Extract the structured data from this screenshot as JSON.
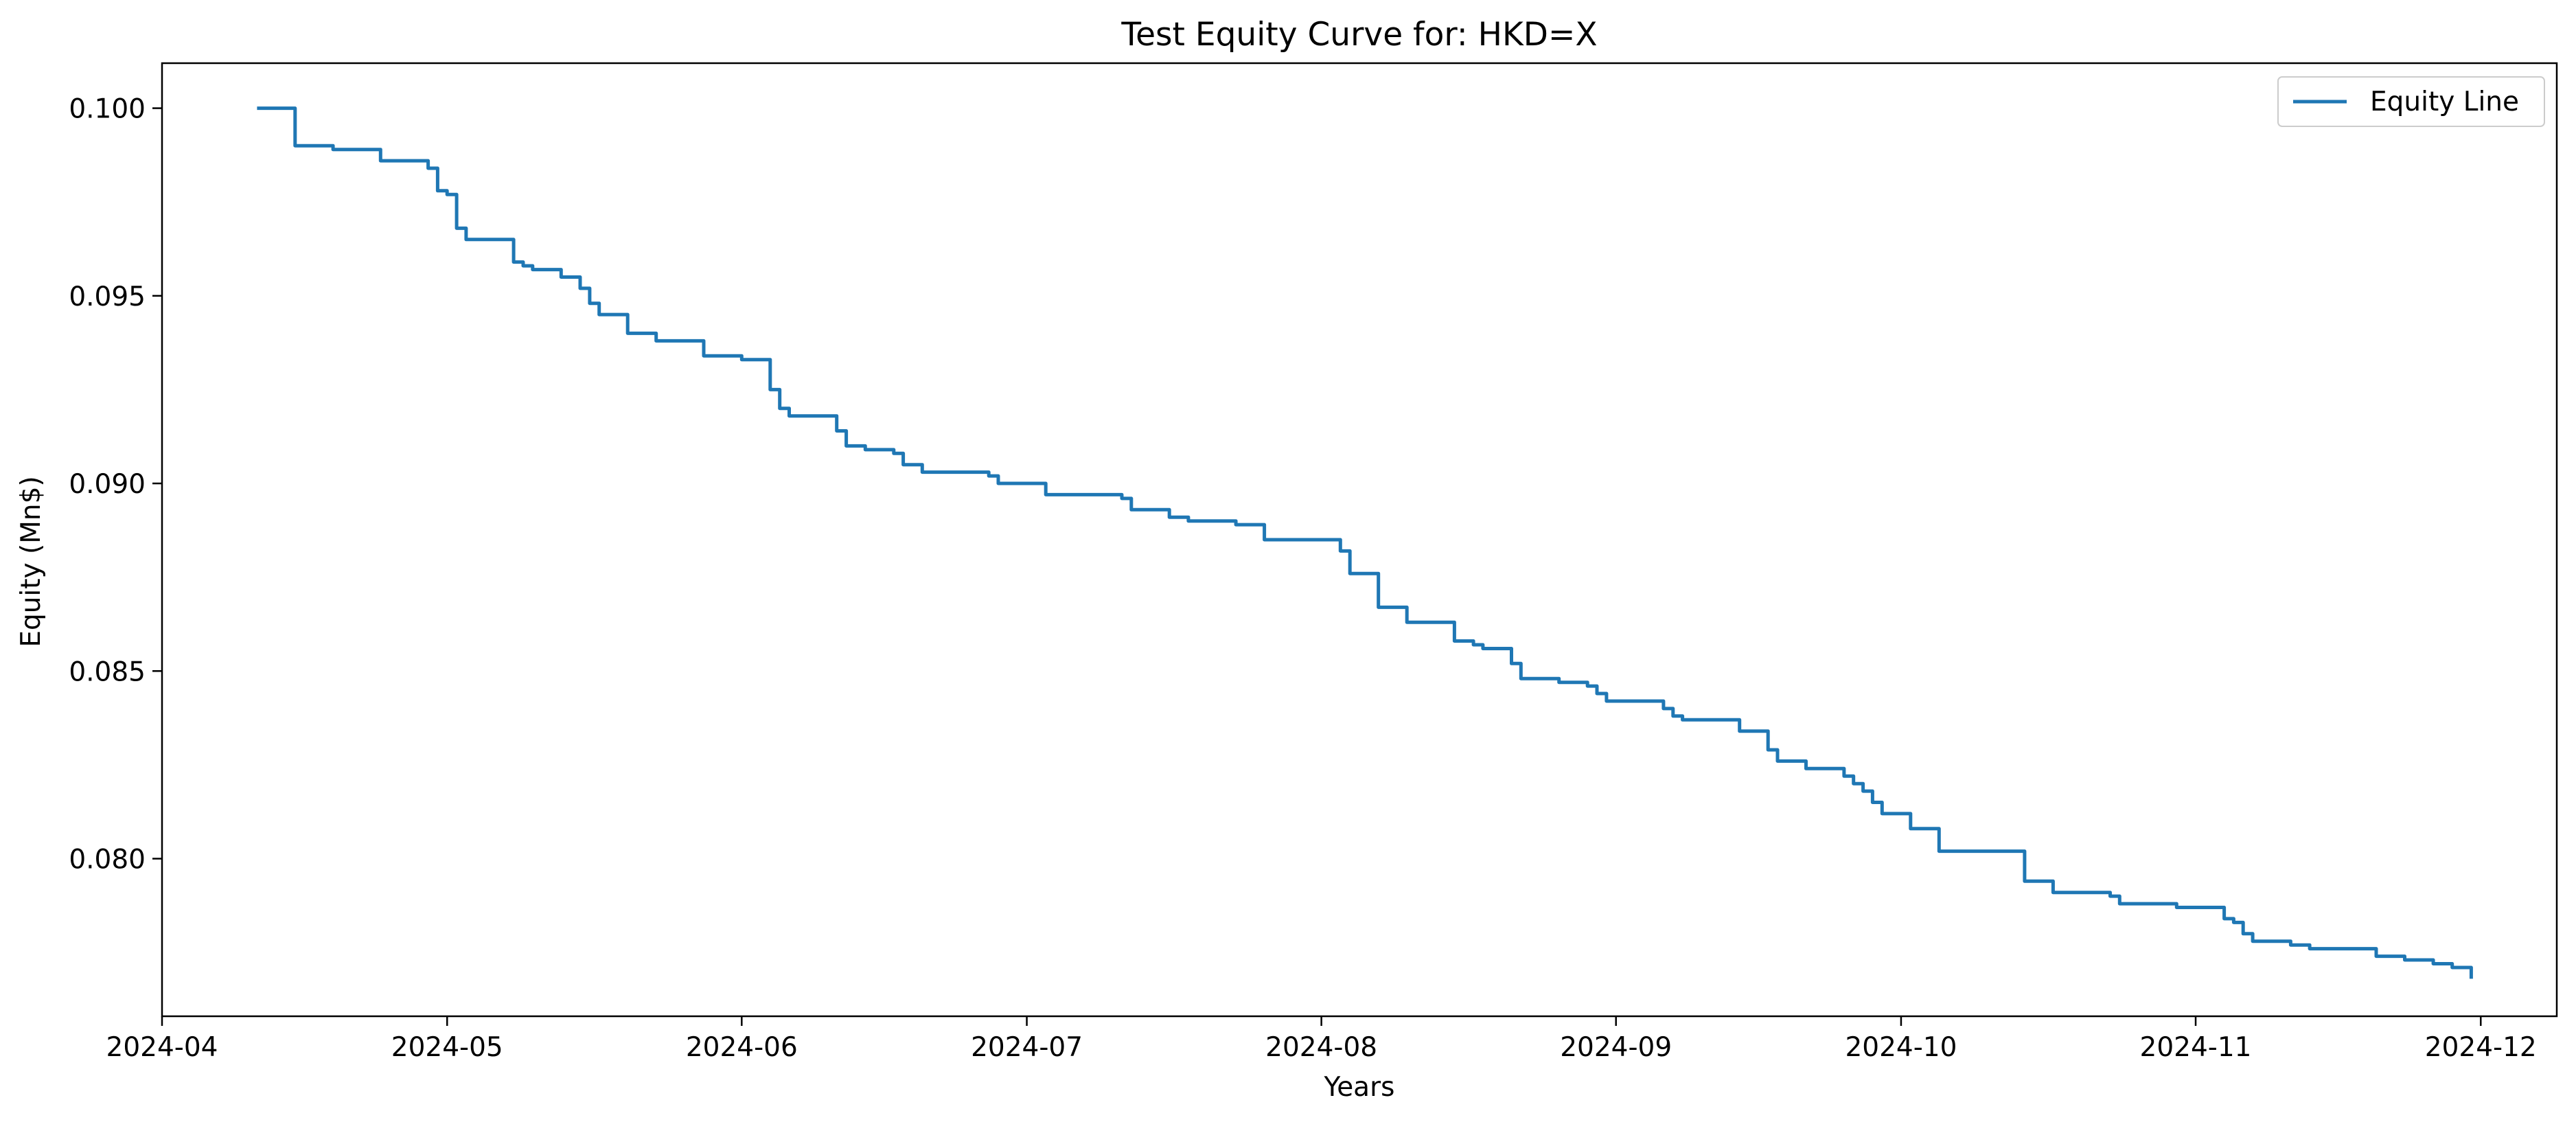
{
  "chart_data": {
    "type": "line",
    "title": "Test Equity Curve for: HKD=X",
    "xlabel": "Years",
    "ylabel": "Equity (Mn$)",
    "xlim": [
      "2024-04-01",
      "2024-12-09"
    ],
    "ylim": [
      0.0758,
      0.1012
    ],
    "x_tick_labels": [
      "2024-04",
      "2024-05",
      "2024-06",
      "2024-07",
      "2024-08",
      "2024-09",
      "2024-10",
      "2024-11",
      "2024-12"
    ],
    "x_tick_dates": [
      "2024-04-01",
      "2024-05-01",
      "2024-06-01",
      "2024-07-01",
      "2024-08-01",
      "2024-09-01",
      "2024-10-01",
      "2024-11-01",
      "2024-12-01"
    ],
    "y_ticks": [
      0.08,
      0.085,
      0.09,
      0.095,
      0.1
    ],
    "y_tick_labels": [
      "0.080",
      "0.085",
      "0.090",
      "0.095",
      "0.100"
    ],
    "grid": false,
    "legend_position": "top-right",
    "series": [
      {
        "name": "Equity Line",
        "color": "#1f77b4",
        "step": true,
        "points": [
          [
            "2024-04-11",
            0.1
          ],
          [
            "2024-04-15",
            0.099
          ],
          [
            "2024-04-19",
            0.0989
          ],
          [
            "2024-04-24",
            0.0986
          ],
          [
            "2024-04-29",
            0.0984
          ],
          [
            "2024-04-30",
            0.0978
          ],
          [
            "2024-05-01",
            0.0977
          ],
          [
            "2024-05-02",
            0.0968
          ],
          [
            "2024-05-03",
            0.0965
          ],
          [
            "2024-05-08",
            0.0959
          ],
          [
            "2024-05-09",
            0.0958
          ],
          [
            "2024-05-10",
            0.0957
          ],
          [
            "2024-05-13",
            0.0955
          ],
          [
            "2024-05-15",
            0.0952
          ],
          [
            "2024-05-16",
            0.0948
          ],
          [
            "2024-05-17",
            0.0945
          ],
          [
            "2024-05-20",
            0.094
          ],
          [
            "2024-05-23",
            0.0938
          ],
          [
            "2024-05-28",
            0.0934
          ],
          [
            "2024-06-01",
            0.0933
          ],
          [
            "2024-06-04",
            0.0925
          ],
          [
            "2024-06-05",
            0.092
          ],
          [
            "2024-06-06",
            0.0918
          ],
          [
            "2024-06-11",
            0.0914
          ],
          [
            "2024-06-12",
            0.091
          ],
          [
            "2024-06-14",
            0.0909
          ],
          [
            "2024-06-17",
            0.0908
          ],
          [
            "2024-06-18",
            0.0905
          ],
          [
            "2024-06-20",
            0.0903
          ],
          [
            "2024-06-27",
            0.0902
          ],
          [
            "2024-06-28",
            0.09
          ],
          [
            "2024-07-03",
            0.0897
          ],
          [
            "2024-07-11",
            0.0896
          ],
          [
            "2024-07-12",
            0.0893
          ],
          [
            "2024-07-16",
            0.0891
          ],
          [
            "2024-07-18",
            0.089
          ],
          [
            "2024-07-23",
            0.0889
          ],
          [
            "2024-07-26",
            0.0885
          ],
          [
            "2024-08-03",
            0.0882
          ],
          [
            "2024-08-04",
            0.0876
          ],
          [
            "2024-08-07",
            0.0867
          ],
          [
            "2024-08-10",
            0.0863
          ],
          [
            "2024-08-15",
            0.0858
          ],
          [
            "2024-08-17",
            0.0857
          ],
          [
            "2024-08-18",
            0.0856
          ],
          [
            "2024-08-21",
            0.0852
          ],
          [
            "2024-08-22",
            0.0848
          ],
          [
            "2024-08-26",
            0.0847
          ],
          [
            "2024-08-29",
            0.0846
          ],
          [
            "2024-08-30",
            0.0844
          ],
          [
            "2024-08-31",
            0.0842
          ],
          [
            "2024-09-06",
            0.084
          ],
          [
            "2024-09-07",
            0.0838
          ],
          [
            "2024-09-08",
            0.0837
          ],
          [
            "2024-09-14",
            0.0834
          ],
          [
            "2024-09-17",
            0.0829
          ],
          [
            "2024-09-18",
            0.0826
          ],
          [
            "2024-09-21",
            0.0824
          ],
          [
            "2024-09-25",
            0.0822
          ],
          [
            "2024-09-26",
            0.082
          ],
          [
            "2024-09-27",
            0.0818
          ],
          [
            "2024-09-28",
            0.0815
          ],
          [
            "2024-09-29",
            0.0812
          ],
          [
            "2024-10-02",
            0.0808
          ],
          [
            "2024-10-05",
            0.0802
          ],
          [
            "2024-10-14",
            0.0794
          ],
          [
            "2024-10-17",
            0.0791
          ],
          [
            "2024-10-23",
            0.079
          ],
          [
            "2024-10-24",
            0.0788
          ],
          [
            "2024-10-30",
            0.0787
          ],
          [
            "2024-11-04",
            0.0784
          ],
          [
            "2024-11-05",
            0.0783
          ],
          [
            "2024-11-06",
            0.078
          ],
          [
            "2024-11-07",
            0.0778
          ],
          [
            "2024-11-11",
            0.0777
          ],
          [
            "2024-11-13",
            0.0776
          ],
          [
            "2024-11-20",
            0.0774
          ],
          [
            "2024-11-23",
            0.0773
          ],
          [
            "2024-11-26",
            0.0772
          ],
          [
            "2024-11-28",
            0.0771
          ],
          [
            "2024-11-30",
            0.0768
          ]
        ]
      }
    ]
  }
}
